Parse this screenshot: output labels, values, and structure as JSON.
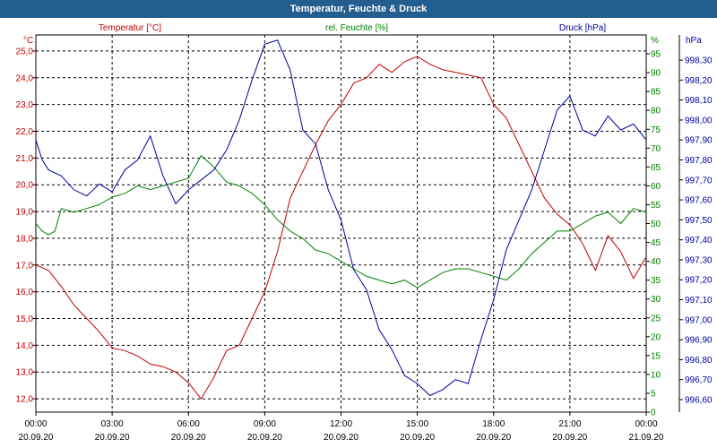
{
  "window": {
    "title": "Temperatur, Feuchte & Druck"
  },
  "chart_data": {
    "type": "line",
    "title": "Temperatur, Feuchte & Druck",
    "x_range": [
      "2020-09-20 00:00",
      "2020-09-21 00:00"
    ],
    "x_ticks": [
      {
        "h": 0,
        "time": "00:00",
        "date": "20.09.20"
      },
      {
        "h": 3,
        "time": "03:00",
        "date": "20.09.20"
      },
      {
        "h": 6,
        "time": "06:00",
        "date": "20.09.20"
      },
      {
        "h": 9,
        "time": "09:00",
        "date": "20.09.20"
      },
      {
        "h": 12,
        "time": "12:00",
        "date": "20.09.20"
      },
      {
        "h": 15,
        "time": "15:00",
        "date": "20.09.20"
      },
      {
        "h": 18,
        "time": "18:00",
        "date": "20.09.20"
      },
      {
        "h": 21,
        "time": "21:00",
        "date": "20.09.20"
      },
      {
        "h": 24,
        "time": "00:00",
        "date": "21.09.20"
      }
    ],
    "grid": true,
    "colors": {
      "temperature": "#c00000",
      "humidity": "#008000",
      "pressure": "#0000a0"
    },
    "axes": {
      "temperature": {
        "label": "Temperatur [°C]",
        "unit": "°C",
        "min": 11.5,
        "max": 25.6,
        "ticks": [
          12.0,
          13.0,
          14.0,
          15.0,
          16.0,
          17.0,
          18.0,
          19.0,
          20.0,
          21.0,
          22.0,
          23.0,
          24.0,
          25.0
        ],
        "side": "left"
      },
      "humidity": {
        "label": "rel. Feuchte [%]",
        "unit": "%",
        "min": 0,
        "max": 100,
        "ticks": [
          0,
          5,
          10,
          15,
          20,
          25,
          30,
          35,
          40,
          45,
          50,
          55,
          60,
          65,
          70,
          75,
          80,
          85,
          90,
          95
        ],
        "side": "right"
      },
      "pressure": {
        "label": "Druck [hPa]",
        "unit": "hPa",
        "min": 996.537,
        "max": 998.426,
        "ticks": [
          996.6,
          996.7,
          996.8,
          996.9,
          997.0,
          997.1,
          997.2,
          997.3,
          997.4,
          997.5,
          997.6,
          997.7,
          997.8,
          997.9,
          998.0,
          998.1,
          998.2,
          998.3
        ],
        "side": "right"
      }
    },
    "series": [
      {
        "name": "Temperatur [°C]",
        "axis": "temperature",
        "x": [
          0,
          0.5,
          1,
          1.5,
          2,
          2.5,
          3,
          3.5,
          4,
          4.5,
          5,
          5.5,
          6,
          6.5,
          7,
          7.5,
          8,
          8.5,
          9,
          9.5,
          10,
          10.5,
          11,
          11.5,
          12,
          12.5,
          13,
          13.5,
          14,
          14.5,
          15,
          15.5,
          16,
          16.5,
          17,
          17.5,
          18,
          18.5,
          19,
          19.5,
          20,
          20.5,
          21,
          21.5,
          22,
          22.5,
          23,
          23.5,
          24
        ],
        "values": [
          17.0,
          16.8,
          16.2,
          15.5,
          15.0,
          14.5,
          13.9,
          13.8,
          13.6,
          13.3,
          13.2,
          13.0,
          12.6,
          12.0,
          12.8,
          13.8,
          14.0,
          15.0,
          16.0,
          17.5,
          19.5,
          20.5,
          21.5,
          22.4,
          23.0,
          23.8,
          24.0,
          24.5,
          24.2,
          24.6,
          24.8,
          24.5,
          24.3,
          24.2,
          24.1,
          24.0,
          23.0,
          22.5,
          21.5,
          20.5,
          19.5,
          18.9,
          18.5,
          17.8,
          16.8,
          18.1,
          17.5,
          16.5,
          17.3
        ]
      },
      {
        "name": "rel. Feuchte [%]",
        "axis": "humidity",
        "x": [
          0,
          0.25,
          0.5,
          0.75,
          1,
          1.5,
          2,
          2.5,
          3,
          3.5,
          4,
          4.5,
          5,
          5.5,
          6,
          6.5,
          7,
          7.5,
          8,
          8.5,
          9,
          9.5,
          10,
          10.5,
          11,
          11.5,
          12,
          12.5,
          13,
          13.5,
          14,
          14.5,
          15,
          15.5,
          16,
          16.5,
          17,
          17.5,
          18,
          18.5,
          19,
          19.5,
          20,
          20.5,
          21,
          21.5,
          22,
          22.5,
          23,
          23.5,
          24
        ],
        "values": [
          50,
          48,
          47,
          48,
          54,
          53,
          54,
          55,
          57,
          58,
          60,
          59,
          60,
          61,
          62,
          68,
          65,
          61,
          60,
          58,
          55,
          51,
          48,
          46,
          43,
          42,
          40,
          38,
          36,
          35,
          34,
          35,
          33,
          35,
          37,
          38,
          38,
          37,
          36,
          35,
          38,
          42,
          45,
          48,
          48,
          50,
          52,
          53,
          50,
          54,
          53
        ]
      },
      {
        "name": "Druck [hPa]",
        "axis": "pressure",
        "x": [
          0,
          0.25,
          0.5,
          1,
          1.5,
          2,
          2.5,
          3,
          3.5,
          4,
          4.5,
          5,
          5.5,
          6,
          6.5,
          7,
          7.5,
          8,
          8.5,
          9,
          9.5,
          10,
          10.5,
          11,
          11.5,
          12,
          12.5,
          13,
          13.5,
          14,
          14.5,
          15,
          15.5,
          16,
          16.5,
          17,
          17.5,
          18,
          18.5,
          19,
          19.5,
          20,
          20.5,
          21,
          21.5,
          22,
          22.5,
          23,
          23.5,
          24
        ],
        "values": [
          997.9,
          997.8,
          997.75,
          997.72,
          997.65,
          997.62,
          997.68,
          997.64,
          997.75,
          997.8,
          997.92,
          997.72,
          997.58,
          997.65,
          997.7,
          997.75,
          997.85,
          998.0,
          998.2,
          998.38,
          998.4,
          998.25,
          997.95,
          997.88,
          997.65,
          997.5,
          997.25,
          997.15,
          996.95,
          996.85,
          996.72,
          996.68,
          996.62,
          996.65,
          996.7,
          996.68,
          996.9,
          997.1,
          997.35,
          997.5,
          997.65,
          997.85,
          998.05,
          998.12,
          997.95,
          997.92,
          998.02,
          997.95,
          997.98,
          997.9
        ]
      }
    ]
  }
}
